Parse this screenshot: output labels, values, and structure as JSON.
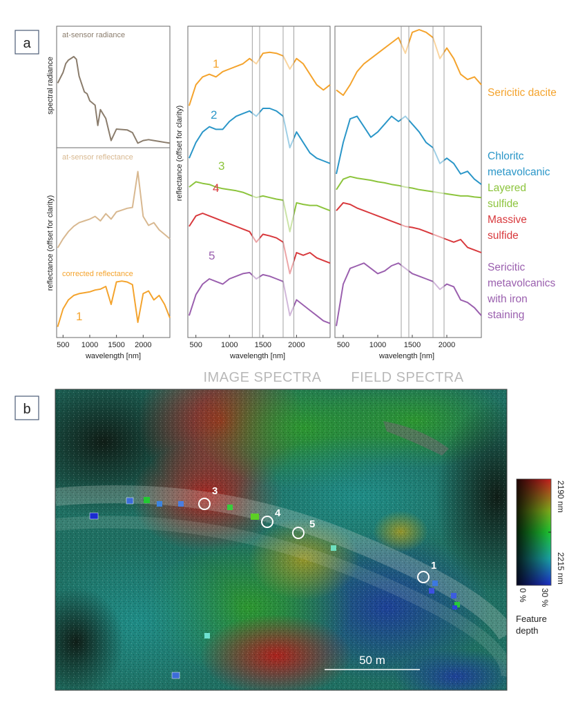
{
  "panel_a": {
    "label": "a",
    "left_plot": {
      "ylabel_top": "spectral radiance",
      "ylabel_bottom": "reflectance (offset for clarity)",
      "label_radiance": "at-sensor radiance",
      "label_at_sensor_refl": "at-sensor reflectance",
      "label_corrected": "corrected reflectance",
      "curve_number": "1",
      "xlabel": "wavelength [nm]",
      "xticks": [
        "500",
        "1000",
        "1500",
        "2000"
      ]
    },
    "image_spectra": {
      "ylabel": "reflectance (offset for clarity)",
      "xlabel": "wavelength [nm]",
      "xticks": [
        "500",
        "1000",
        "1500",
        "2000"
      ],
      "caption": "IMAGE SPECTRA",
      "numbers": [
        "1",
        "2",
        "3",
        "4",
        "5"
      ]
    },
    "field_spectra": {
      "xlabel": "wavelength [nm]",
      "xticks": [
        "500",
        "1000",
        "1500",
        "2000"
      ],
      "caption": "FIELD SPECTRA"
    },
    "legend": {
      "l1": "Sericitic dacite",
      "l2a": "Chloritc",
      "l2b": "metavolcanic",
      "l3a": "Layered",
      "l3b": "sulfide",
      "l4a": "Massive",
      "l4b": "sulfide",
      "l5a": "Sericitic",
      "l5b": "metavolcanics",
      "l5c": "with iron",
      "l5d": "staining"
    }
  },
  "panel_b": {
    "label": "b",
    "scale_bar": "50 m",
    "colorbar_top": "2190 nm",
    "colorbar_bottom": "2215 nm",
    "colorbar_left": "0 %",
    "colorbar_right": "30 %",
    "colorbar_title_1": "Feature",
    "colorbar_title_2": "depth",
    "sites": [
      "1",
      "3",
      "4",
      "5"
    ]
  },
  "colors": {
    "s1": "#f4a32c",
    "s2": "#2a96c8",
    "s3": "#8cc43c",
    "s4": "#d8383c",
    "s5": "#9a5fae",
    "radiance": "#8a7c6c",
    "at_sensor_refl": "#d8b890",
    "caption": "#b8b8b8"
  },
  "chart_data": [
    {
      "type": "line",
      "title": "",
      "xlabel": "wavelength [nm]",
      "ylabel": "spectral radiance / reflectance (offset for clarity)",
      "xlim": [
        380,
        2500
      ],
      "series": [
        {
          "name": "at-sensor radiance",
          "x": [
            400,
            500,
            550,
            600,
            650,
            700,
            750,
            800,
            900,
            950,
            1000,
            1100,
            1150,
            1200,
            1300,
            1400,
            1500,
            1700,
            1800,
            1900,
            2000,
            2100,
            2200,
            2300,
            2400,
            2500
          ],
          "y": [
            0.7,
            0.82,
            0.92,
            0.96,
            0.98,
            1.0,
            0.97,
            0.78,
            0.6,
            0.58,
            0.5,
            0.45,
            0.22,
            0.4,
            0.3,
            0.05,
            0.18,
            0.17,
            0.14,
            0.02,
            0.05,
            0.06,
            0.05,
            0.04,
            0.03,
            0.02
          ]
        },
        {
          "name": "at-sensor reflectance",
          "x": [
            400,
            500,
            600,
            700,
            800,
            900,
            1000,
            1100,
            1200,
            1300,
            1400,
            1500,
            1600,
            1700,
            1800,
            1900,
            2000,
            2100,
            2200,
            2300,
            2400,
            2500
          ],
          "y": [
            0.1,
            0.2,
            0.28,
            0.34,
            0.38,
            0.4,
            0.42,
            0.45,
            0.4,
            0.48,
            0.42,
            0.5,
            0.52,
            0.54,
            0.55,
            0.95,
            0.45,
            0.35,
            0.38,
            0.3,
            0.25,
            0.2
          ]
        },
        {
          "name": "corrected reflectance",
          "x": [
            400,
            500,
            600,
            700,
            800,
            900,
            1000,
            1100,
            1200,
            1300,
            1400,
            1500,
            1600,
            1700,
            1800,
            1900,
            2000,
            2100,
            2200,
            2300,
            2400,
            2500
          ],
          "y": [
            0.05,
            0.25,
            0.35,
            0.4,
            0.42,
            0.43,
            0.44,
            0.46,
            0.47,
            0.5,
            0.3,
            0.55,
            0.56,
            0.55,
            0.52,
            0.1,
            0.42,
            0.45,
            0.35,
            0.4,
            0.3,
            0.15
          ]
        }
      ]
    },
    {
      "type": "line",
      "title": "IMAGE SPECTRA",
      "xlabel": "wavelength [nm]",
      "ylabel": "reflectance (offset for clarity)",
      "xlim": [
        380,
        2500
      ],
      "series": [
        {
          "name": "1",
          "x": [
            400,
            500,
            600,
            700,
            800,
            900,
            1000,
            1100,
            1200,
            1300,
            1400,
            1500,
            1600,
            1700,
            1800,
            1900,
            2000,
            2100,
            2200,
            2300,
            2400,
            2500
          ],
          "y": [
            4.3,
            4.7,
            4.85,
            4.9,
            4.85,
            4.95,
            5.0,
            5.05,
            5.1,
            5.2,
            5.1,
            5.3,
            5.32,
            5.3,
            5.25,
            5.0,
            5.2,
            5.1,
            4.9,
            4.7,
            4.6,
            4.7
          ]
        },
        {
          "name": "2",
          "x": [
            400,
            500,
            600,
            700,
            800,
            900,
            1000,
            1100,
            1200,
            1300,
            1400,
            1500,
            1600,
            1700,
            1800,
            1900,
            2000,
            2100,
            2200,
            2300,
            2400,
            2500
          ],
          "y": [
            3.3,
            3.6,
            3.8,
            3.9,
            3.85,
            3.85,
            4.0,
            4.1,
            4.15,
            4.2,
            4.1,
            4.25,
            4.25,
            4.2,
            4.1,
            3.5,
            3.8,
            3.6,
            3.4,
            3.3,
            3.25,
            3.2
          ]
        },
        {
          "name": "3",
          "x": [
            400,
            500,
            600,
            700,
            800,
            900,
            1000,
            1100,
            1200,
            1300,
            1400,
            1500,
            1600,
            1700,
            1800,
            1900,
            2000,
            2100,
            2200,
            2300,
            2400,
            2500
          ],
          "y": [
            2.75,
            2.85,
            2.82,
            2.8,
            2.75,
            2.72,
            2.7,
            2.68,
            2.65,
            2.6,
            2.55,
            2.58,
            2.55,
            2.52,
            2.5,
            1.9,
            2.45,
            2.42,
            2.4,
            2.4,
            2.35,
            2.3
          ]
        },
        {
          "name": "4",
          "x": [
            400,
            500,
            600,
            700,
            800,
            900,
            1000,
            1100,
            1200,
            1300,
            1400,
            1500,
            1600,
            1700,
            1800,
            1900,
            2000,
            2100,
            2200,
            2300,
            2400,
            2500
          ],
          "y": [
            2.0,
            2.2,
            2.25,
            2.2,
            2.15,
            2.1,
            2.05,
            2.0,
            1.95,
            1.9,
            1.7,
            1.85,
            1.82,
            1.78,
            1.7,
            1.1,
            1.5,
            1.45,
            1.5,
            1.4,
            1.35,
            1.3
          ]
        },
        {
          "name": "5",
          "x": [
            400,
            500,
            600,
            700,
            800,
            900,
            1000,
            1100,
            1200,
            1300,
            1400,
            1500,
            1600,
            1700,
            1800,
            1900,
            2000,
            2100,
            2200,
            2300,
            2400,
            2500
          ],
          "y": [
            0.3,
            0.7,
            0.9,
            1.0,
            0.95,
            0.9,
            1.0,
            1.05,
            1.1,
            1.12,
            1.0,
            1.08,
            1.05,
            1.0,
            0.95,
            0.3,
            0.6,
            0.5,
            0.4,
            0.3,
            0.2,
            0.15
          ]
        }
      ]
    },
    {
      "type": "line",
      "title": "FIELD SPECTRA",
      "xlabel": "wavelength [nm]",
      "ylabel": "",
      "xlim": [
        380,
        2500
      ],
      "series": [
        {
          "name": "Sericitic dacite",
          "x": [
            400,
            500,
            600,
            700,
            800,
            900,
            1000,
            1100,
            1200,
            1300,
            1400,
            1500,
            1600,
            1700,
            1800,
            1900,
            2000,
            2100,
            2200,
            2300,
            2400,
            2500
          ],
          "y": [
            4.6,
            4.5,
            4.7,
            4.95,
            5.1,
            5.2,
            5.3,
            5.4,
            5.5,
            5.6,
            5.3,
            5.7,
            5.75,
            5.7,
            5.6,
            5.2,
            5.4,
            5.2,
            4.9,
            4.8,
            4.85,
            4.7
          ]
        },
        {
          "name": "Chloritc metavolcanic",
          "x": [
            400,
            500,
            600,
            700,
            800,
            900,
            1000,
            1100,
            1200,
            1300,
            1400,
            1500,
            1600,
            1700,
            1800,
            1900,
            2000,
            2100,
            2200,
            2300,
            2400,
            2500
          ],
          "y": [
            3.0,
            3.6,
            4.05,
            4.1,
            3.9,
            3.7,
            3.8,
            3.95,
            4.1,
            4.0,
            4.1,
            3.95,
            3.8,
            3.6,
            3.5,
            3.2,
            3.3,
            3.2,
            3.0,
            3.05,
            2.9,
            2.8
          ]
        },
        {
          "name": "Layered sulfide",
          "x": [
            400,
            500,
            600,
            700,
            800,
            900,
            1000,
            1100,
            1200,
            1300,
            1400,
            1500,
            1600,
            1700,
            1800,
            1900,
            2000,
            2100,
            2200,
            2300,
            2400,
            2500
          ],
          "y": [
            2.7,
            2.9,
            2.95,
            2.92,
            2.9,
            2.88,
            2.85,
            2.83,
            2.8,
            2.78,
            2.75,
            2.73,
            2.7,
            2.68,
            2.66,
            2.64,
            2.62,
            2.6,
            2.58,
            2.58,
            2.56,
            2.55
          ]
        },
        {
          "name": "Massive sulfide",
          "x": [
            400,
            500,
            600,
            700,
            800,
            900,
            1000,
            1100,
            1200,
            1300,
            1400,
            1500,
            1600,
            1700,
            1800,
            1900,
            2000,
            2100,
            2200,
            2300,
            2400,
            2500
          ],
          "y": [
            2.3,
            2.45,
            2.42,
            2.35,
            2.3,
            2.25,
            2.2,
            2.15,
            2.1,
            2.05,
            2.0,
            1.98,
            1.95,
            1.9,
            1.85,
            1.8,
            1.75,
            1.7,
            1.75,
            1.6,
            1.55,
            1.5
          ]
        },
        {
          "name": "Sericitic metavolcanics with iron staining",
          "x": [
            400,
            500,
            600,
            700,
            800,
            900,
            1000,
            1100,
            1200,
            1300,
            1400,
            1500,
            1600,
            1700,
            1800,
            1900,
            2000,
            2100,
            2200,
            2300,
            2400,
            2500
          ],
          "y": [
            0.1,
            0.9,
            1.2,
            1.25,
            1.3,
            1.2,
            1.1,
            1.15,
            1.25,
            1.3,
            1.2,
            1.1,
            1.05,
            1.0,
            0.95,
            0.8,
            0.9,
            0.85,
            0.6,
            0.55,
            0.45,
            0.3
          ]
        }
      ]
    }
  ]
}
